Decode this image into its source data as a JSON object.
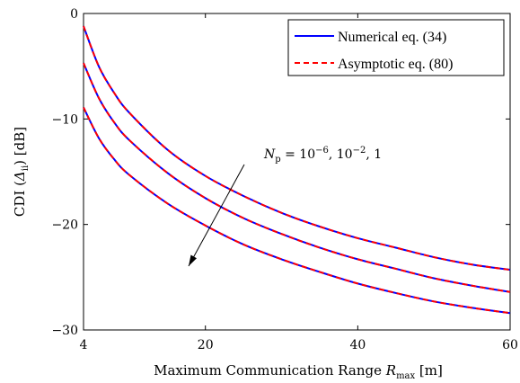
{
  "chart_data": {
    "type": "line",
    "xlabel_prefix": "Maximum Communication Range ",
    "xlabel_var": "R",
    "xlabel_sub": "max",
    "xlabel_suffix": " [m]",
    "ylabel_prefix": "CDI (",
    "ylabel_var": "Δ",
    "ylabel_sub": "ii",
    "ylabel_suffix": ") [dB]",
    "xlim": [
      4,
      60
    ],
    "ylim": [
      -30,
      0
    ],
    "xticks": [
      4,
      20,
      40,
      60
    ],
    "yticks": [
      0,
      -10,
      -20,
      -30
    ],
    "ytick_labels": [
      "0",
      "−10",
      "−20",
      "−30"
    ],
    "grid": false,
    "legend_position": "top-right",
    "annotation": {
      "text_var": "N",
      "text_sub": "p",
      "text_eq": " = 10",
      "exp1": "−6",
      "mid": ", 10",
      "exp2": "−2",
      "tail": ", 1"
    },
    "legend": [
      {
        "name": "Numerical eq. (34)",
        "color": "#0000ff",
        "dash": "solid"
      },
      {
        "name": "Asymptotic eq. (80)",
        "color": "#ff0000",
        "dash": "dashed"
      }
    ],
    "x": [
      4,
      6,
      8,
      10,
      15,
      20,
      25,
      30,
      35,
      40,
      45,
      50,
      55,
      60
    ],
    "series": [
      {
        "values": [
          -1.2,
          -5.0,
          -7.5,
          -9.4,
          -12.9,
          -15.4,
          -17.3,
          -18.9,
          -20.2,
          -21.3,
          -22.2,
          -23.1,
          -23.8,
          -24.3
        ]
      },
      {
        "values": [
          -4.7,
          -8.0,
          -10.3,
          -12.0,
          -15.1,
          -17.5,
          -19.4,
          -20.9,
          -22.2,
          -23.3,
          -24.2,
          -25.1,
          -25.8,
          -26.4
        ]
      },
      {
        "values": [
          -8.9,
          -11.8,
          -13.8,
          -15.3,
          -18.0,
          -20.1,
          -21.9,
          -23.3,
          -24.5,
          -25.6,
          -26.5,
          -27.3,
          -27.9,
          -28.4
        ]
      }
    ]
  }
}
